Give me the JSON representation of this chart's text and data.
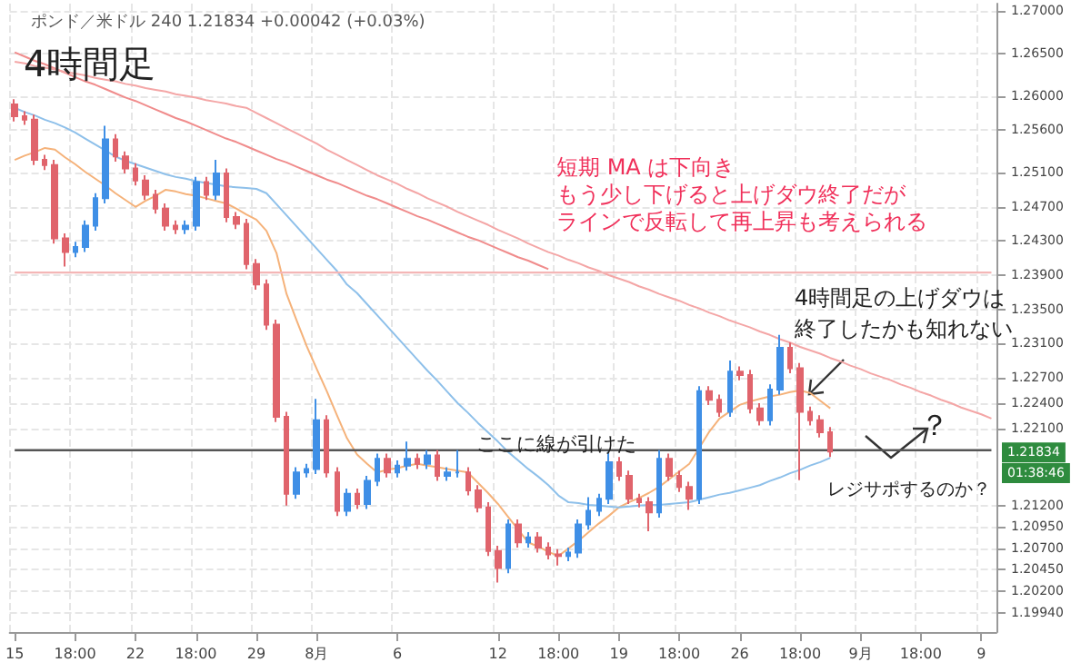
{
  "chart_data": {
    "type": "candlestick",
    "title": "4時間足",
    "subtitle": "ポンド／米ドル 240 1.21834 +0.00042 (+0.03%)",
    "categories": [
      "15",
      null,
      null,
      null,
      null,
      null,
      "18:00",
      null,
      null,
      null,
      null,
      null,
      "22",
      null,
      null,
      null,
      null,
      null,
      "18:00",
      null,
      null,
      null,
      null,
      null,
      "29",
      null,
      null,
      null,
      null,
      null,
      "8月",
      null,
      null,
      null,
      null,
      null,
      null,
      null,
      "6",
      null,
      null,
      null,
      null,
      null,
      null,
      null,
      null,
      null,
      "12",
      null,
      null,
      null,
      null,
      null,
      "18:00",
      null,
      null,
      null,
      null,
      null,
      "19",
      null,
      null,
      null,
      null,
      null,
      "18:00",
      null,
      null,
      null,
      null,
      null,
      "26",
      null,
      null,
      null,
      null,
      null,
      "18:00",
      null,
      null,
      null,
      null,
      null,
      "9月",
      null,
      null,
      null,
      null,
      null,
      "18:00",
      null,
      null,
      null,
      null,
      null,
      "9",
      null
    ],
    "ohlc": [
      [
        1.259,
        1.2596,
        1.257,
        1.2576
      ],
      [
        1.2576,
        1.2582,
        1.2566,
        1.2572
      ],
      [
        1.2572,
        1.2578,
        1.2519,
        1.2525
      ],
      [
        1.2525,
        1.2531,
        1.2513,
        1.2519
      ],
      [
        1.2519,
        1.2525,
        1.2427,
        1.2433
      ],
      [
        1.2433,
        1.2439,
        1.24,
        1.2417
      ],
      [
        1.2417,
        1.2429,
        1.2411,
        1.2423
      ],
      [
        1.2423,
        1.2454,
        1.2417,
        1.2448
      ],
      [
        1.2448,
        1.2486,
        1.2442,
        1.248
      ],
      [
        1.248,
        1.2565,
        1.2474,
        1.2549
      ],
      [
        1.2549,
        1.2555,
        1.2523,
        1.2529
      ],
      [
        1.2529,
        1.2535,
        1.2509,
        1.2515
      ],
      [
        1.2515,
        1.2521,
        1.2495,
        1.2501
      ],
      [
        1.2501,
        1.2507,
        1.2478,
        1.2484
      ],
      [
        1.2484,
        1.249,
        1.2462,
        1.2468
      ],
      [
        1.2468,
        1.2474,
        1.2442,
        1.2448
      ],
      [
        1.2448,
        1.2454,
        1.2438,
        1.2444
      ],
      [
        1.2444,
        1.2454,
        1.2438,
        1.2448
      ],
      [
        1.2448,
        1.2505,
        1.2442,
        1.2499
      ],
      [
        1.2499,
        1.2505,
        1.2478,
        1.2484
      ],
      [
        1.2484,
        1.2525,
        1.2478,
        1.2509
      ],
      [
        1.2509,
        1.2515,
        1.2452,
        1.2458
      ],
      [
        1.2458,
        1.2464,
        1.2444,
        1.245
      ],
      [
        1.245,
        1.2456,
        1.2397,
        1.2403
      ],
      [
        1.2403,
        1.2409,
        1.2373,
        1.2379
      ],
      [
        1.2379,
        1.2385,
        1.2326,
        1.2332
      ],
      [
        1.2332,
        1.2338,
        1.2218,
        1.2224
      ],
      [
        1.2224,
        1.223,
        1.212,
        1.2134
      ],
      [
        1.2134,
        1.2165,
        1.2128,
        1.2159
      ],
      [
        1.2159,
        1.2169,
        1.2153,
        1.2163
      ],
      [
        1.2163,
        1.2245,
        1.2157,
        1.222
      ],
      [
        1.222,
        1.2226,
        1.2153,
        1.2159
      ],
      [
        1.2159,
        1.2165,
        1.2108,
        1.2114
      ],
      [
        1.2114,
        1.214,
        1.2108,
        1.2134
      ],
      [
        1.2134,
        1.214,
        1.2116,
        1.2122
      ],
      [
        1.2122,
        1.2155,
        1.2116,
        1.2149
      ],
      [
        1.2149,
        1.2181,
        1.2143,
        1.2175
      ],
      [
        1.2175,
        1.2181,
        1.2153,
        1.2159
      ],
      [
        1.2159,
        1.2173,
        1.2153,
        1.2167
      ],
      [
        1.2167,
        1.2195,
        1.2161,
        1.2175
      ],
      [
        1.2175,
        1.2181,
        1.2163,
        1.2169
      ],
      [
        1.2169,
        1.2185,
        1.2163,
        1.2179
      ],
      [
        1.2179,
        1.2185,
        1.2149,
        1.2155
      ],
      [
        1.2155,
        1.2165,
        1.2149,
        1.2159
      ],
      [
        1.2159,
        1.2185,
        1.2153,
        1.2159
      ],
      [
        1.2159,
        1.2165,
        1.2132,
        1.2138
      ],
      [
        1.2138,
        1.2144,
        1.2112,
        1.2118
      ],
      [
        1.2118,
        1.2124,
        1.2061,
        1.2067
      ],
      [
        1.2067,
        1.2073,
        1.203,
        1.2047
      ],
      [
        1.2047,
        1.2104,
        1.2041,
        1.2098
      ],
      [
        1.2098,
        1.2104,
        1.2071,
        1.2077
      ],
      [
        1.2077,
        1.2089,
        1.2071,
        1.2083
      ],
      [
        1.2083,
        1.2089,
        1.2065,
        1.2071
      ],
      [
        1.2071,
        1.2077,
        1.2057,
        1.2063
      ],
      [
        1.2063,
        1.2069,
        1.205,
        1.2061
      ],
      [
        1.2061,
        1.2071,
        1.2055,
        1.2065
      ],
      [
        1.2065,
        1.2104,
        1.2059,
        1.2098
      ],
      [
        1.2098,
        1.213,
        1.2092,
        1.2114
      ],
      [
        1.2114,
        1.2134,
        1.2108,
        1.2128
      ],
      [
        1.2128,
        1.2183,
        1.2122,
        1.2171
      ],
      [
        1.2171,
        1.2177,
        1.2149,
        1.2155
      ],
      [
        1.2155,
        1.2161,
        1.2122,
        1.2128
      ],
      [
        1.2128,
        1.2134,
        1.2118,
        1.2124
      ],
      [
        1.2124,
        1.213,
        1.209,
        1.2112
      ],
      [
        1.2112,
        1.2185,
        1.2106,
        1.2175
      ],
      [
        1.2175,
        1.2181,
        1.2149,
        1.2155
      ],
      [
        1.2155,
        1.2161,
        1.2136,
        1.2142
      ],
      [
        1.2142,
        1.2148,
        1.2115,
        1.2128
      ],
      [
        1.2128,
        1.226,
        1.2122,
        1.2254
      ],
      [
        1.2254,
        1.226,
        1.2238,
        1.2244
      ],
      [
        1.2244,
        1.225,
        1.2224,
        1.223
      ],
      [
        1.223,
        1.229,
        1.2224,
        1.2277
      ],
      [
        1.2277,
        1.2283,
        1.2267,
        1.2273
      ],
      [
        1.2273,
        1.2279,
        1.2228,
        1.2234
      ],
      [
        1.2234,
        1.224,
        1.2214,
        1.222
      ],
      [
        1.222,
        1.2262,
        1.2214,
        1.2256
      ],
      [
        1.2256,
        1.232,
        1.225,
        1.2305
      ],
      [
        1.2305,
        1.2311,
        1.2275,
        1.2281
      ],
      [
        1.2281,
        1.2287,
        1.215,
        1.223
      ],
      [
        1.223,
        1.2236,
        1.2214,
        1.222
      ],
      [
        1.222,
        1.2226,
        1.22,
        1.2206
      ],
      [
        1.2206,
        1.2212,
        1.2177,
        1.21834
      ],
      null,
      null,
      null,
      null,
      null,
      null,
      null,
      null,
      null,
      null,
      null,
      null,
      null,
      null,
      null,
      null
    ],
    "colors": [
      "#e0646c",
      "#e0646c",
      "#e0646c",
      "#e0646c",
      "#e0646c",
      "#e0646c",
      "#3f8fe6",
      "#3f8fe6",
      "#3f8fe6",
      "#3f8fe6",
      "#e0646c",
      "#e0646c",
      "#e0646c",
      "#e0646c",
      "#e0646c",
      "#e0646c",
      "#e0646c",
      "#3f8fe6",
      "#3f8fe6",
      "#e0646c",
      "#3f8fe6",
      "#e0646c",
      "#e0646c",
      "#e0646c",
      "#e0646c",
      "#e0646c",
      "#e0646c",
      "#e0646c",
      "#3f8fe6",
      "#3f8fe6",
      "#3f8fe6",
      "#e0646c",
      "#e0646c",
      "#3f8fe6",
      "#e0646c",
      "#3f8fe6",
      "#3f8fe6",
      "#e0646c",
      "#3f8fe6",
      "#3f8fe6",
      "#e0646c",
      "#3f8fe6",
      "#e0646c",
      "#3f8fe6",
      "#3f8fe6",
      "#e0646c",
      "#e0646c",
      "#e0646c",
      "#e0646c",
      "#3f8fe6",
      "#e0646c",
      "#3f8fe6",
      "#e0646c",
      "#e0646c",
      "#e0646c",
      "#3f8fe6",
      "#3f8fe6",
      "#3f8fe6",
      "#3f8fe6",
      "#3f8fe6",
      "#e0646c",
      "#e0646c",
      "#e0646c",
      "#e0646c",
      "#3f8fe6",
      "#e0646c",
      "#e0646c",
      "#e0646c",
      "#3f8fe6",
      "#e0646c",
      "#e0646c",
      "#3f8fe6",
      "#e0646c",
      "#e0646c",
      "#e0646c",
      "#3f8fe6",
      "#3f8fe6",
      "#e0646c",
      "#e0646c",
      "#e0646c",
      "#e0646c",
      "#e0646c",
      null,
      null,
      null,
      null,
      null,
      null,
      null,
      null,
      null,
      null,
      null,
      null,
      null,
      null,
      null,
      null
    ],
    "series": [
      {
        "type": "line",
        "color": "#f5b27a",
        "values": [
          1.2525,
          1.253,
          1.2534,
          1.2539,
          1.2537,
          1.2528,
          1.252,
          1.2511,
          1.2503,
          1.2495,
          1.2486,
          1.2478,
          1.247,
          1.2477,
          1.2483,
          1.249,
          1.2488,
          1.2485,
          1.2483,
          1.248,
          1.2477,
          1.2474,
          1.2468,
          1.2461,
          1.2455,
          1.2442,
          1.2416,
          1.2368,
          1.2337,
          1.2307,
          1.228,
          1.2254,
          1.2226,
          1.2199,
          1.218,
          1.2169,
          1.2159,
          1.2162,
          1.2164,
          1.2167,
          1.2169,
          1.2167,
          1.2165,
          1.2163,
          1.2161,
          1.2159,
          1.2147,
          1.2135,
          1.2122,
          1.2107,
          1.2092,
          1.2077,
          1.2072,
          1.2066,
          1.2061,
          1.207,
          1.2079,
          1.2089,
          1.2099,
          1.2108,
          1.2118,
          1.2124,
          1.2129,
          1.2135,
          1.2142,
          1.2151,
          1.216,
          1.2169,
          1.2188,
          1.2207,
          1.2222,
          1.223,
          1.2238,
          1.2242,
          1.2245,
          1.2248,
          1.225,
          1.2253,
          1.2255,
          1.2252,
          1.2243,
          1.2234,
          null,
          null,
          null,
          null,
          null,
          null,
          null,
          null,
          null,
          null,
          null,
          null,
          null,
          null,
          null,
          null
        ]
      },
      {
        "type": "line",
        "color": "#8ec0ea",
        "values": [
          1.2586,
          1.2581,
          1.2577,
          1.2572,
          1.2568,
          1.2563,
          1.2557,
          1.255,
          1.2543,
          1.2536,
          1.2529,
          1.2524,
          1.252,
          1.2516,
          1.2512,
          1.2508,
          1.2505,
          1.2503,
          1.25,
          1.2498,
          1.2496,
          1.2494,
          1.2493,
          1.2492,
          1.2491,
          1.2486,
          1.2473,
          1.246,
          1.2447,
          1.2434,
          1.2421,
          1.2408,
          1.2395,
          1.2379,
          1.2369,
          1.2356,
          1.2343,
          1.233,
          1.2317,
          1.2304,
          1.2291,
          1.2278,
          1.2266,
          1.2253,
          1.224,
          1.2229,
          1.2217,
          1.2206,
          1.2195,
          1.2183,
          1.2173,
          1.2163,
          1.2154,
          1.2144,
          1.2132,
          1.2124,
          1.2123,
          1.2121,
          1.212,
          1.2119,
          1.2118,
          1.2119,
          1.212,
          1.2121,
          1.2121,
          1.2122,
          1.2123,
          1.2124,
          1.2127,
          1.213,
          1.2133,
          1.2135,
          1.2138,
          1.2141,
          1.2144,
          1.2149,
          1.2153,
          1.2158,
          1.2162,
          1.2167,
          1.2171,
          1.2176,
          null,
          null,
          null,
          null,
          null,
          null,
          null,
          null,
          null,
          null,
          null,
          null,
          null,
          null,
          null,
          null
        ]
      },
      {
        "type": "line",
        "color": "#f08c8c",
        "values": [
          1.2651,
          1.2646,
          1.2641,
          1.2637,
          1.2632,
          1.2627,
          1.2622,
          1.2617,
          1.2613,
          1.2608,
          1.2603,
          1.2598,
          1.2594,
          1.2589,
          1.2584,
          1.2579,
          1.2574,
          1.257,
          1.2565,
          1.256,
          1.2555,
          1.255,
          1.2546,
          1.2541,
          1.2536,
          1.2531,
          1.2526,
          1.2522,
          1.2517,
          1.2512,
          1.2507,
          1.2502,
          1.2498,
          1.2493,
          1.2488,
          1.2483,
          1.2479,
          1.2474,
          1.2469,
          1.2464,
          1.2459,
          1.2455,
          1.245,
          1.2445,
          1.244,
          1.2435,
          1.2431,
          1.2426,
          1.2421,
          1.2416,
          1.2411,
          1.2407,
          1.2402,
          1.2397,
          null,
          null,
          null,
          null,
          null,
          null,
          null,
          null,
          null,
          null,
          null,
          null,
          null,
          null,
          null,
          null,
          null,
          null,
          null,
          null,
          null,
          null,
          null,
          null,
          null,
          null,
          null,
          null,
          null,
          null,
          null,
          null,
          null,
          null,
          null,
          null,
          null,
          null,
          null,
          null,
          null,
          null,
          null,
          null
        ]
      },
      {
        "type": "line",
        "color": "#f4a6a6",
        "values": [
          1.264,
          1.2638,
          1.2635,
          1.2633,
          1.2631,
          1.2628,
          1.2626,
          1.2624,
          1.2621,
          1.2619,
          1.2617,
          1.2614,
          1.2612,
          1.2609,
          1.2607,
          1.2605,
          1.2602,
          1.26,
          1.2598,
          1.2595,
          1.2593,
          1.2591,
          1.2588,
          1.2586,
          1.258,
          1.2574,
          1.2568,
          1.2562,
          1.2556,
          1.255,
          1.2544,
          1.2537,
          1.2531,
          1.2525,
          1.2519,
          1.2513,
          1.2507,
          1.2502,
          1.2497,
          1.2491,
          1.2486,
          1.248,
          1.2475,
          1.247,
          1.2464,
          1.2459,
          1.2454,
          1.2449,
          1.2443,
          1.2438,
          1.2433,
          1.2427,
          1.2422,
          1.2417,
          1.2413,
          1.2408,
          1.2404,
          1.2399,
          1.2395,
          1.239,
          1.2386,
          1.2382,
          1.2377,
          1.2373,
          1.2368,
          1.2364,
          1.236,
          1.2355,
          1.2351,
          1.2346,
          1.2342,
          1.2337,
          1.2333,
          1.2329,
          1.2324,
          1.232,
          1.2315,
          1.2311,
          1.2306,
          1.2302,
          1.2298,
          1.2293,
          1.2289,
          1.2284,
          1.228,
          1.2275,
          1.2271,
          1.2267,
          1.2262,
          1.2258,
          1.2253,
          1.2249,
          1.2244,
          1.224,
          1.2235,
          1.2231,
          1.2227,
          1.2222
        ]
      }
    ],
    "marker": "none",
    "line_style": "solid",
    "ylim": [
      1.1972,
      1.2708
    ],
    "yticks": [
      {
        "value": 1.1994,
        "label": "1.19940"
      },
      {
        "value": 1.202,
        "label": "1.20200"
      },
      {
        "value": 1.2045,
        "label": "1.20450"
      },
      {
        "value": 1.207,
        "label": "1.20700"
      },
      {
        "value": 1.2095,
        "label": "1.20950"
      },
      {
        "value": 1.212,
        "label": "1.21200"
      },
      {
        "value": 1.221,
        "label": "1.22100"
      },
      {
        "value": 1.224,
        "label": "1.22400"
      },
      {
        "value": 1.227,
        "label": "1.22700"
      },
      {
        "value": 1.231,
        "label": "1.23100"
      },
      {
        "value": 1.235,
        "label": "1.23500"
      },
      {
        "value": 1.239,
        "label": "1.23900"
      },
      {
        "value": 1.243,
        "label": "1.24300"
      },
      {
        "value": 1.247,
        "label": "1.24700"
      },
      {
        "value": 1.251,
        "label": "1.25100"
      },
      {
        "value": 1.256,
        "label": "1.25600"
      },
      {
        "value": 1.26,
        "label": "1.26000"
      },
      {
        "value": 1.265,
        "label": "1.26500"
      },
      {
        "value": 1.27,
        "label": "1.27000"
      }
    ],
    "grid": true,
    "ref_lines": [
      {
        "axis": "y",
        "value": 1.2185,
        "color": "#555555"
      },
      {
        "axis": "y",
        "value": 1.2393,
        "color": "#f4b6b6"
      }
    ],
    "annotations": [
      {
        "text": "1.21834",
        "y": 1.21834
      },
      "01:38:46",
      "短期 MA は下向き",
      "もう少し下げると上げダウ終了だが",
      "ラインで反転して再上昇も考えられる",
      "4時間足の上げダウは",
      "終了したかも知れない",
      "ここに線が引けた",
      "？",
      "レジサポするのか？"
    ]
  }
}
